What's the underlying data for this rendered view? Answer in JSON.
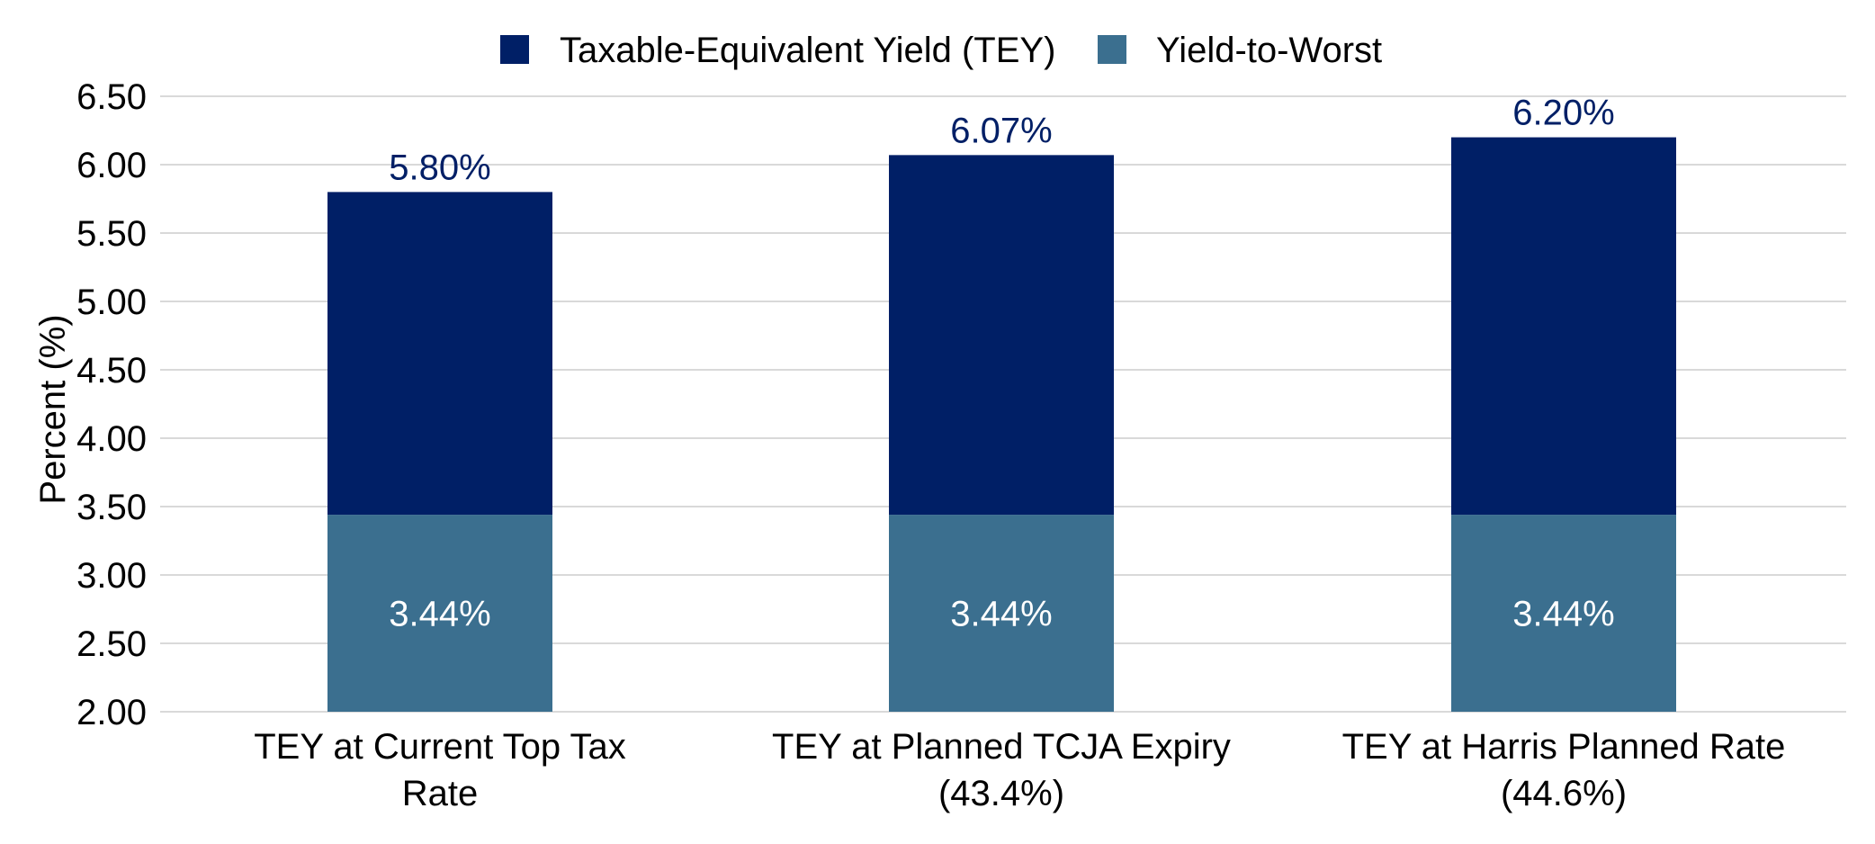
{
  "chart_data": {
    "type": "bar",
    "stacked": true,
    "categories": [
      [
        "TEY at Current Top Tax",
        "Rate"
      ],
      [
        "TEY at Planned TCJA Expiry",
        "(43.4%)"
      ],
      [
        "TEY at Harris Planned Rate",
        "(44.6%)"
      ]
    ],
    "series": [
      {
        "name": "Taxable-Equivalent Yield (TEY)",
        "color": "#001f66",
        "label_color": "#001f66",
        "totals": [
          5.8,
          6.07,
          6.2
        ],
        "data_labels": [
          "5.80%",
          "6.07%",
          "6.20%"
        ]
      },
      {
        "name": "Yield-to-Worst",
        "color": "#3b6f8f",
        "label_color": "#ffffff",
        "values": [
          3.44,
          3.44,
          3.44
        ],
        "data_labels": [
          "3.44%",
          "3.44%",
          "3.44%"
        ]
      }
    ],
    "ylabel": "Percent (%)",
    "ylim": [
      2.0,
      6.5
    ],
    "yticks": [
      "2.00",
      "2.50",
      "3.00",
      "3.50",
      "4.00",
      "4.50",
      "5.00",
      "5.50",
      "6.00",
      "6.50"
    ],
    "grid": true,
    "grid_color": "#d9d9d9",
    "legend_position": "top-center"
  }
}
